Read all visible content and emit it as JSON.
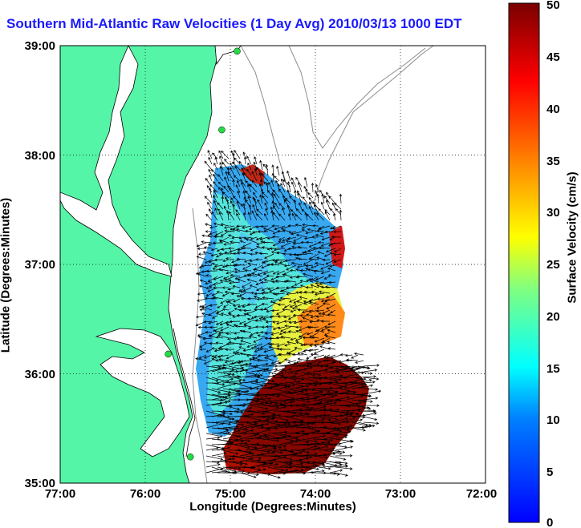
{
  "title": "Southern Mid-Atlantic Raw Velocities (1 Day Avg) 2010/03/13 1000 EDT",
  "axes": {
    "x_label": "Longitude (Degrees:Minutes)",
    "y_label": "Latitude (Degrees:Minutes)",
    "x_ticks": [
      "77:00",
      "76:00",
      "75:00",
      "74:00",
      "73:00",
      "72:00"
    ],
    "y_ticks": [
      "39:00",
      "38:00",
      "37:00",
      "36:00",
      "35:00"
    ],
    "x_range": [
      -77,
      -72
    ],
    "y_range": [
      35,
      39
    ],
    "grid": "dotted"
  },
  "colorbar": {
    "label": "Surface Velocity (cm/s)",
    "ticks": [
      "0",
      "5",
      "10",
      "15",
      "20",
      "25",
      "30",
      "35",
      "40",
      "45",
      "50"
    ],
    "range": [
      0,
      50
    ],
    "colormap": "jet"
  },
  "colors": {
    "land": "#55f5a8",
    "title": "#1a1aff",
    "coastline": "#000000",
    "bathymetry": "#8c8c8c",
    "stations": "#22dd44"
  },
  "stations": [
    {
      "lon": -74.92,
      "lat": 38.95
    },
    {
      "lon": -75.1,
      "lat": 38.23
    },
    {
      "lon": -75.73,
      "lat": 36.18
    },
    {
      "lon": -75.47,
      "lat": 35.24
    }
  ]
}
